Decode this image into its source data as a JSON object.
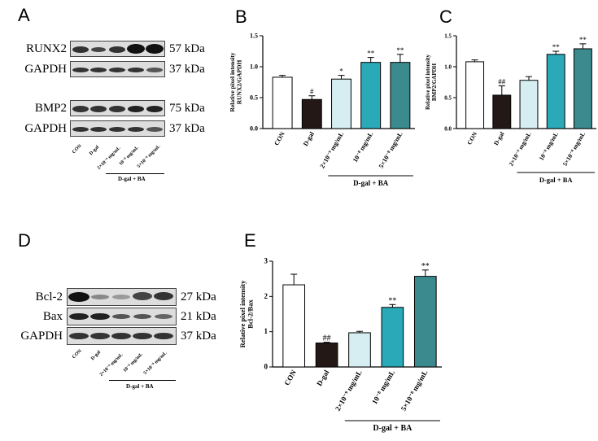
{
  "panels": {
    "A": "A",
    "B": "B",
    "C": "C",
    "D": "D",
    "E": "E"
  },
  "blots": {
    "A": {
      "rows": [
        {
          "protein": "RUNX2",
          "kda": "57 kDa"
        },
        {
          "protein": "GAPDH",
          "kda": "37 kDa"
        },
        {
          "protein": "BMP2",
          "kda": "75 kDa"
        },
        {
          "protein": "GAPDH",
          "kda": "37 kDa"
        }
      ],
      "lanes": [
        "CON",
        "D-gal",
        "2×10⁻⁹ mg/mL",
        "10⁻⁸ mg/mL",
        "5×10⁻⁸ mg/mL"
      ],
      "group_label": "D-gal + BA"
    },
    "D": {
      "rows": [
        {
          "protein": "Bcl-2",
          "kda": "27 kDa"
        },
        {
          "protein": "Bax",
          "kda": "21 kDa"
        },
        {
          "protein": "GAPDH",
          "kda": "37 kDa"
        }
      ],
      "lanes": [
        "CON",
        "D-gal",
        "2×10⁻⁹ mg/mL",
        "10⁻⁸ mg/mL",
        "5×10⁻⁸ mg/mL"
      ],
      "group_label": "D-gal + BA"
    }
  },
  "colors": {
    "con": "#ffffff",
    "dgal": "#231815",
    "low": "#d6eef2",
    "mid": "#2aa9b8",
    "high": "#3a8a8e"
  },
  "chart_data": [
    {
      "panel": "B",
      "type": "bar",
      "categories": [
        "CON",
        "D-gal",
        "2×10⁻⁹ mg/mL",
        "10⁻⁸ mg/mL",
        "5×10⁻⁸ mg/mL"
      ],
      "values": [
        0.83,
        0.47,
        0.8,
        1.07,
        1.07
      ],
      "errors": [
        0.03,
        0.06,
        0.06,
        0.08,
        0.13
      ],
      "sig": [
        "",
        "#",
        "*",
        "**",
        "**"
      ],
      "ylabel": "Relative pixel intensity\nRUNX2/GAPDH",
      "ylim": [
        0,
        1.5
      ],
      "ticks": [
        "0.0",
        "0.5",
        "1.0",
        "1.5"
      ],
      "group_label": "D-gal + BA"
    },
    {
      "panel": "C",
      "type": "bar",
      "categories": [
        "CON",
        "D-gal",
        "2×10⁻⁹ mg/mL",
        "10⁻⁸ mg/mL",
        "5×10⁻⁸ mg/mL"
      ],
      "values": [
        1.08,
        0.54,
        0.78,
        1.2,
        1.29
      ],
      "errors": [
        0.03,
        0.15,
        0.06,
        0.05,
        0.08
      ],
      "sig": [
        "",
        "##",
        "",
        "**",
        "**"
      ],
      "ylabel": "Relative pixel intensity\nBMP2/GAPDH",
      "ylim": [
        0,
        1.5
      ],
      "ticks": [
        "0.0",
        "0.5",
        "1.0",
        "1.5"
      ],
      "group_label": "D-gal + BA"
    },
    {
      "panel": "E",
      "type": "bar",
      "categories": [
        "CON",
        "D-gal",
        "2×10⁻⁹ mg/mL",
        "10⁻⁸ mg/mL",
        "5×10⁻⁸ mg/mL"
      ],
      "values": [
        2.33,
        0.68,
        0.97,
        1.69,
        2.57
      ],
      "errors": [
        0.3,
        0.02,
        0.04,
        0.08,
        0.18
      ],
      "sig": [
        "",
        "##",
        "",
        "**",
        "**"
      ],
      "ylabel": "Relative pixel intensity\nBcl-2/Bax",
      "ylim": [
        0,
        3
      ],
      "ticks": [
        "0",
        "1",
        "2",
        "3"
      ],
      "group_label": "D-gal + BA"
    }
  ]
}
